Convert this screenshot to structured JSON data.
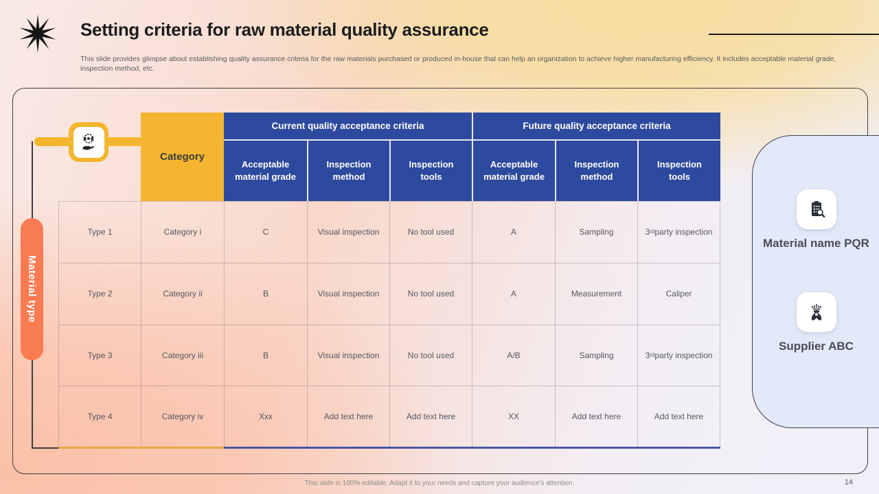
{
  "slide": {
    "title": "Setting criteria for raw material quality assurance",
    "subtitle": "This slide provides glimpse about establishing quality assurance criteria for the raw materials purchased or produced in-house that can help an organization to achieve higher manufacturing efficiency. It includes acceptable material grade, inspection method, etc.",
    "footer_note": "This slide is 100% editable. Adapt it to your needs and capture your audience's attention.",
    "page_number": "14"
  },
  "colors": {
    "header_blue": "#2E4A9E",
    "accent_yellow": "#F4B630",
    "accent_orange": "#F87B51",
    "panel_lavender": "#E3E9F8"
  },
  "diagram": {
    "axis_label": "Material type",
    "table": {
      "category_header": "Category",
      "group_headers": [
        "Current quality acceptance criteria",
        "Future quality acceptance criteria"
      ],
      "sub_headers": [
        "Acceptable material grade",
        "Inspection method",
        "Inspection tools",
        "Acceptable material grade",
        "Inspection method",
        "Inspection tools"
      ],
      "rows": [
        {
          "type": "Type 1",
          "category": "Category i",
          "cells": [
            "C",
            "Visual inspection",
            "No tool used",
            "A",
            "Sampling",
            "3rd party inspection"
          ]
        },
        {
          "type": "Type 2",
          "category": "Category ii",
          "cells": [
            "B",
            "Visual inspection",
            "No tool used",
            "A",
            "Measurement",
            "Caliper"
          ]
        },
        {
          "type": "Type 3",
          "category": "Category iii",
          "cells": [
            "B",
            "Visual inspection",
            "No tool used",
            "A/B",
            "Sampling",
            "3rd party inspection"
          ]
        },
        {
          "type": "Type 4",
          "category": "Category iv",
          "cells": [
            "Xxx",
            "Add text here",
            "Add text here",
            "XX",
            "Add text here",
            "Add text here"
          ]
        }
      ]
    },
    "side_panel": {
      "items": [
        {
          "label": "Material name PQR",
          "icon": "document-search-icon"
        },
        {
          "label": "Supplier ABC",
          "icon": "hands-offering-icon"
        }
      ]
    },
    "connector_icon": "quality-badge-in-hand-icon"
  }
}
